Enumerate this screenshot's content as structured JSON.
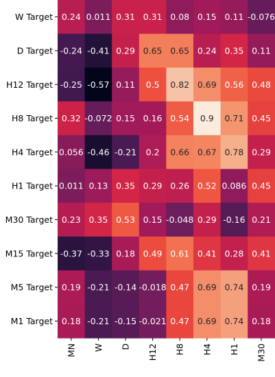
{
  "chart_data": {
    "type": "heatmap",
    "colormap": "rocket",
    "value_range": [
      -0.57,
      0.9
    ],
    "columns": [
      "MN",
      "W",
      "D",
      "H12",
      "H8",
      "H4",
      "H1",
      "M30"
    ],
    "rows": [
      "W Target",
      "D Target",
      "H12 Target",
      "H8 Target",
      "H4 Target",
      "H1 Target",
      "M30 Target",
      "M15 Target",
      "M5 Target",
      "M1 Target"
    ],
    "values": [
      [
        0.24,
        0.011,
        0.31,
        0.31,
        0.08,
        0.15,
        0.11,
        -0.076
      ],
      [
        -0.24,
        -0.41,
        0.29,
        0.65,
        0.65,
        0.24,
        0.35,
        0.11
      ],
      [
        -0.25,
        -0.57,
        0.11,
        0.5,
        0.82,
        0.69,
        0.56,
        0.48
      ],
      [
        0.32,
        -0.072,
        0.15,
        0.16,
        0.54,
        0.9,
        0.71,
        0.45
      ],
      [
        0.056,
        -0.46,
        -0.21,
        0.2,
        0.66,
        0.67,
        0.78,
        0.29
      ],
      [
        0.011,
        0.13,
        0.35,
        0.29,
        0.26,
        0.52,
        0.086,
        0.45
      ],
      [
        0.23,
        0.35,
        0.53,
        0.15,
        -0.048,
        0.29,
        -0.16,
        0.21
      ],
      [
        -0.37,
        -0.33,
        0.18,
        0.49,
        0.61,
        0.41,
        0.28,
        0.41
      ],
      [
        0.19,
        -0.21,
        -0.14,
        -0.018,
        0.47,
        0.69,
        0.74,
        0.19
      ],
      [
        0.18,
        -0.21,
        -0.15,
        -0.021,
        0.47,
        0.69,
        0.74,
        0.18
      ]
    ],
    "labels": [
      [
        "0.24",
        "0.011",
        "0.31",
        "0.31",
        "0.08",
        "0.15",
        "0.11",
        "-0.076"
      ],
      [
        "-0.24",
        "-0.41",
        "0.29",
        "0.65",
        "0.65",
        "0.24",
        "0.35",
        "0.11"
      ],
      [
        "-0.25",
        "-0.57",
        "0.11",
        "0.5",
        "0.82",
        "0.69",
        "0.56",
        "0.48"
      ],
      [
        "0.32",
        "-0.072",
        "0.15",
        "0.16",
        "0.54",
        "0.9",
        "0.71",
        "0.45"
      ],
      [
        "0.056",
        "-0.46",
        "-0.21",
        "0.2",
        "0.66",
        "0.67",
        "0.78",
        "0.29"
      ],
      [
        "0.011",
        "0.13",
        "0.35",
        "0.29",
        "0.26",
        "0.52",
        "0.086",
        "0.45"
      ],
      [
        "0.23",
        "0.35",
        "0.53",
        "0.15",
        "-0.048",
        "0.29",
        "-0.16",
        "0.21"
      ],
      [
        "-0.37",
        "-0.33",
        "0.18",
        "0.49",
        "0.61",
        "0.41",
        "0.28",
        "0.41"
      ],
      [
        "0.19",
        "-0.21",
        "-0.14",
        "-0.018",
        "0.47",
        "0.69",
        "0.74",
        "0.19"
      ],
      [
        "0.18",
        "-0.21",
        "-0.15",
        "-0.021",
        "0.47",
        "0.69",
        "0.74",
        "0.18"
      ]
    ]
  }
}
